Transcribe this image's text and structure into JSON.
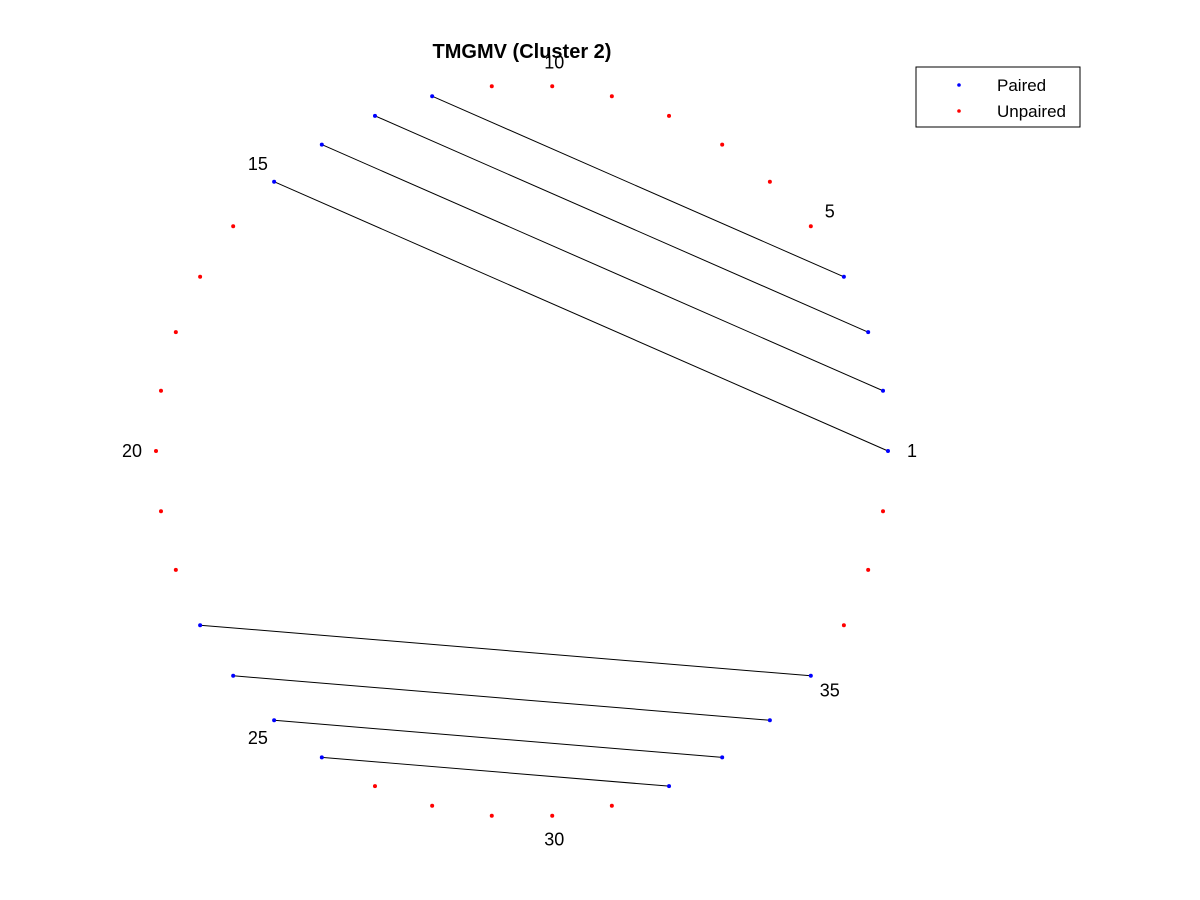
{
  "chart_data": {
    "type": "scatter",
    "title": "TMGMV (Cluster 2)",
    "n_positions": 38,
    "position_labels": [
      1,
      5,
      10,
      15,
      20,
      25,
      30,
      35
    ],
    "pairs": [
      [
        1,
        15
      ],
      [
        2,
        14
      ],
      [
        3,
        13
      ],
      [
        4,
        12
      ],
      [
        23,
        35
      ],
      [
        24,
        34
      ],
      [
        25,
        33
      ],
      [
        26,
        32
      ]
    ],
    "series": [
      {
        "name": "Paired",
        "color": "#0000ff",
        "positions": [
          1,
          2,
          3,
          4,
          12,
          13,
          14,
          15,
          23,
          24,
          25,
          26,
          32,
          33,
          34,
          35
        ]
      },
      {
        "name": "Unpaired",
        "color": "#ff0000",
        "positions": [
          5,
          6,
          7,
          8,
          9,
          10,
          11,
          16,
          17,
          18,
          19,
          20,
          21,
          22,
          27,
          28,
          29,
          30,
          31,
          36,
          37,
          38
        ]
      }
    ],
    "legend": {
      "position": "top-right",
      "entries": [
        "Paired",
        "Unpaired"
      ]
    },
    "pair_line_color": "#000000",
    "grid": false,
    "axes_visible": false
  }
}
